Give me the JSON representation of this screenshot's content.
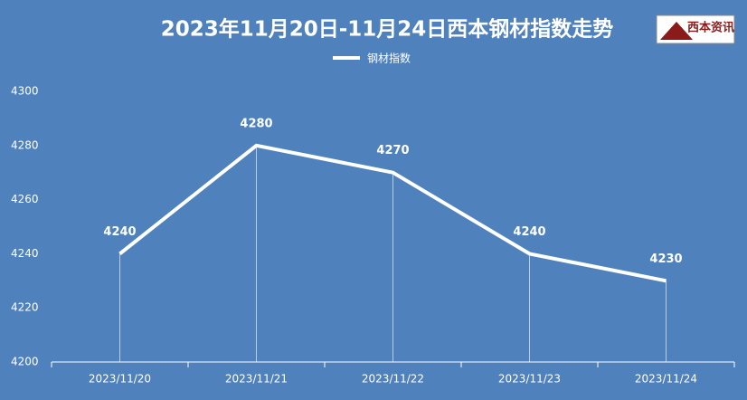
{
  "chart_data": {
    "type": "line",
    "title": "2023年11月20日-11月24日西本钢材指数走势",
    "logo_text": "西本资讯",
    "categories": [
      "2023/11/20",
      "2023/11/21",
      "2023/11/22",
      "2023/11/23",
      "2023/11/24"
    ],
    "series": [
      {
        "name": "钢材指数",
        "color": "#ffffff",
        "values": [
          4240,
          4280,
          4270,
          4240,
          4230
        ]
      }
    ],
    "ylim": [
      4200,
      4300
    ],
    "yticks": [
      4200,
      4220,
      4240,
      4260,
      4280,
      4300
    ],
    "grid": false,
    "drop_lines": true,
    "data_labels": true,
    "legend": "top"
  }
}
